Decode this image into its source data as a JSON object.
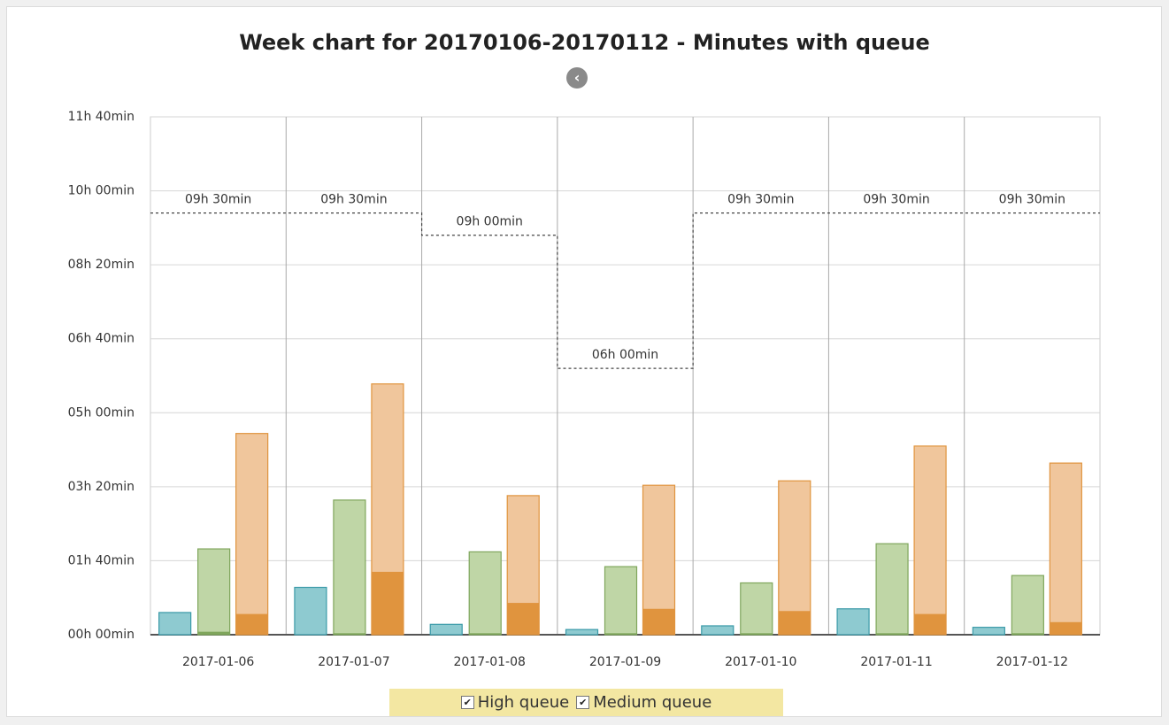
{
  "chart_data": {
    "type": "bar",
    "title": "Week chart for 20170106-20170112 - Minutes with queue",
    "ylim": [
      0,
      700
    ],
    "y_ticks": [
      0,
      100,
      200,
      300,
      400,
      500,
      600,
      700
    ],
    "y_tick_labels": [
      "00h 00min",
      "01h 40min",
      "03h 20min",
      "05h 00min",
      "06h 40min",
      "08h 20min",
      "10h 00min",
      "11h 40min"
    ],
    "grid": true,
    "categories": [
      "2017-01-06",
      "2017-01-07",
      "2017-01-08",
      "2017-01-09",
      "2017-01-10",
      "2017-01-11",
      "2017-01-12"
    ],
    "thresholds": [
      570,
      570,
      540,
      360,
      570,
      570,
      570
    ],
    "threshold_labels": [
      "09h 30min",
      "09h 30min",
      "09h 00min",
      "06h 00min",
      "09h 30min",
      "09h 30min",
      "09h 30min"
    ],
    "series": [
      {
        "name": "Teal",
        "color": "#8ecad0",
        "stroke": "#3a9aa8",
        "values": [
          30,
          64,
          14,
          7,
          12,
          35,
          10
        ]
      },
      {
        "name": "Green",
        "color": "#bfd6a6",
        "stroke": "#7fa65c",
        "values": [
          116,
          182,
          112,
          92,
          70,
          123,
          80
        ],
        "inner": [
          4,
          2,
          2,
          2,
          2,
          2,
          2
        ],
        "inner_color": "#7fa65c"
      },
      {
        "name": "Orange",
        "color": "#f0c69c",
        "stroke": "#e0943e",
        "values": [
          272,
          339,
          188,
          202,
          208,
          255,
          232
        ],
        "inner": [
          28,
          85,
          43,
          35,
          32,
          28,
          17
        ],
        "inner_color": "#e0943e"
      }
    ]
  },
  "legend": {
    "high_label": "High queue",
    "medium_label": "Medium queue",
    "high_checked": true,
    "medium_checked": true
  },
  "controls": {
    "back_icon": "chevron-left-icon"
  }
}
